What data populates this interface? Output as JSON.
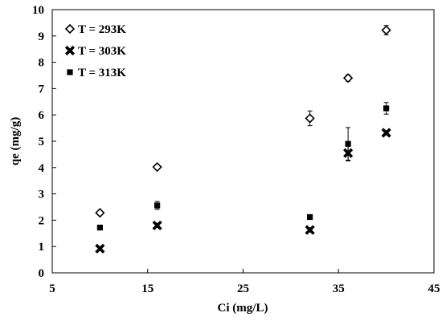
{
  "chart_data": {
    "type": "scatter",
    "title": "",
    "xlabel": "Ci (mg/L)",
    "ylabel": "qe (mg/g)",
    "xlim": [
      5,
      45
    ],
    "ylim": [
      0,
      10
    ],
    "xticks": [
      5,
      15,
      25,
      35,
      45
    ],
    "yticks": [
      0,
      1,
      2,
      3,
      4,
      5,
      6,
      7,
      8,
      9,
      10
    ],
    "grid": false,
    "legend_position": "top-left",
    "series": [
      {
        "name": "T = 293K",
        "marker": "diamond-open",
        "color": "#000000",
        "points": [
          {
            "x": 10,
            "y": 2.28,
            "err": 0.08
          },
          {
            "x": 16,
            "y": 4.02,
            "err": 0.08
          },
          {
            "x": 32,
            "y": 5.87,
            "err": 0.28
          },
          {
            "x": 36,
            "y": 7.4,
            "err": 0.12
          },
          {
            "x": 40,
            "y": 9.22,
            "err": 0.18
          }
        ]
      },
      {
        "name": "T = 303K",
        "marker": "cross-filled",
        "color": "#000000",
        "points": [
          {
            "x": 10,
            "y": 0.92,
            "err": 0.08
          },
          {
            "x": 16,
            "y": 1.8,
            "err": 0.08
          },
          {
            "x": 32,
            "y": 1.63,
            "err": 0.08
          },
          {
            "x": 36,
            "y": 4.55,
            "err": 0.3
          },
          {
            "x": 40,
            "y": 5.32,
            "err": 0.08
          }
        ]
      },
      {
        "name": "T = 313K",
        "marker": "square-filled",
        "color": "#000000",
        "points": [
          {
            "x": 10,
            "y": 1.72,
            "err": 0.05
          },
          {
            "x": 16,
            "y": 2.56,
            "err": 0.15
          },
          {
            "x": 32,
            "y": 2.12,
            "err": 0.05
          },
          {
            "x": 36,
            "y": 4.9,
            "err": 0.62
          },
          {
            "x": 40,
            "y": 6.25,
            "err": 0.22
          }
        ]
      }
    ]
  }
}
